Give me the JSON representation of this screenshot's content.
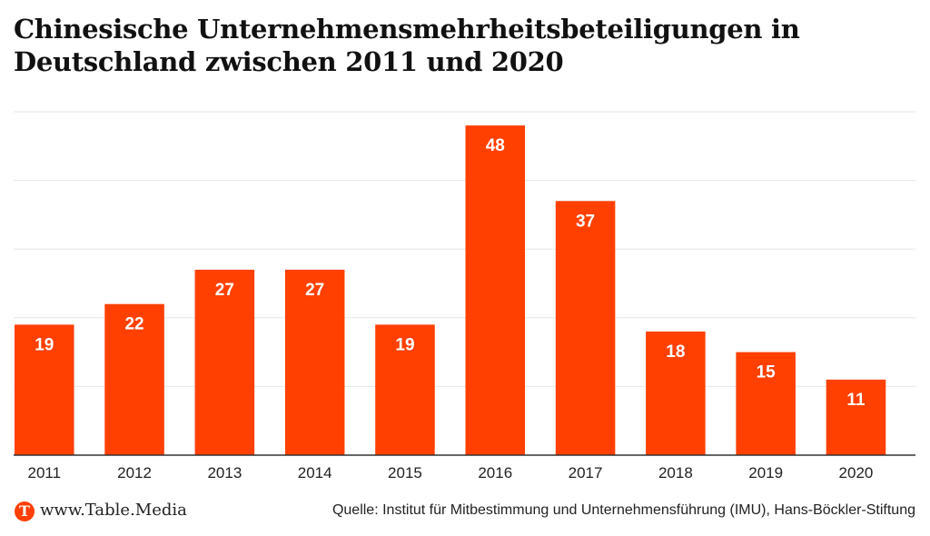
{
  "header": {
    "title": "Chinesische Unternehmensmehrheitsbeteiligungen in Deutschland zwischen 2011 und 2020"
  },
  "footer": {
    "logo_letter": "T",
    "site": "www.Table.Media",
    "source": "Quelle: Institut für Mitbestimmung und Unternehmensführung (IMU), Hans-Böckler-Stiftung"
  },
  "colors": {
    "bar": "#ff4000",
    "gridline": "#e6e6e6",
    "axis": "#333333",
    "label_inside": "#ffffff",
    "tick_label": "#222222"
  },
  "chart_data": {
    "type": "bar",
    "title": "Chinesische Unternehmensmehrheitsbeteiligungen in Deutschland zwischen 2011 und 2020",
    "xlabel": "",
    "ylabel": "",
    "categories": [
      "2011",
      "2012",
      "2013",
      "2014",
      "2015",
      "2016",
      "2017",
      "2018",
      "2019",
      "2020"
    ],
    "values": [
      19,
      22,
      27,
      27,
      19,
      48,
      37,
      18,
      15,
      11
    ],
    "ylim": [
      0,
      50
    ],
    "gridlines": [
      10,
      20,
      30,
      40,
      50
    ],
    "grid": true,
    "y_tick_labels_visible": false,
    "data_labels": "inside-top",
    "legend": "none"
  }
}
